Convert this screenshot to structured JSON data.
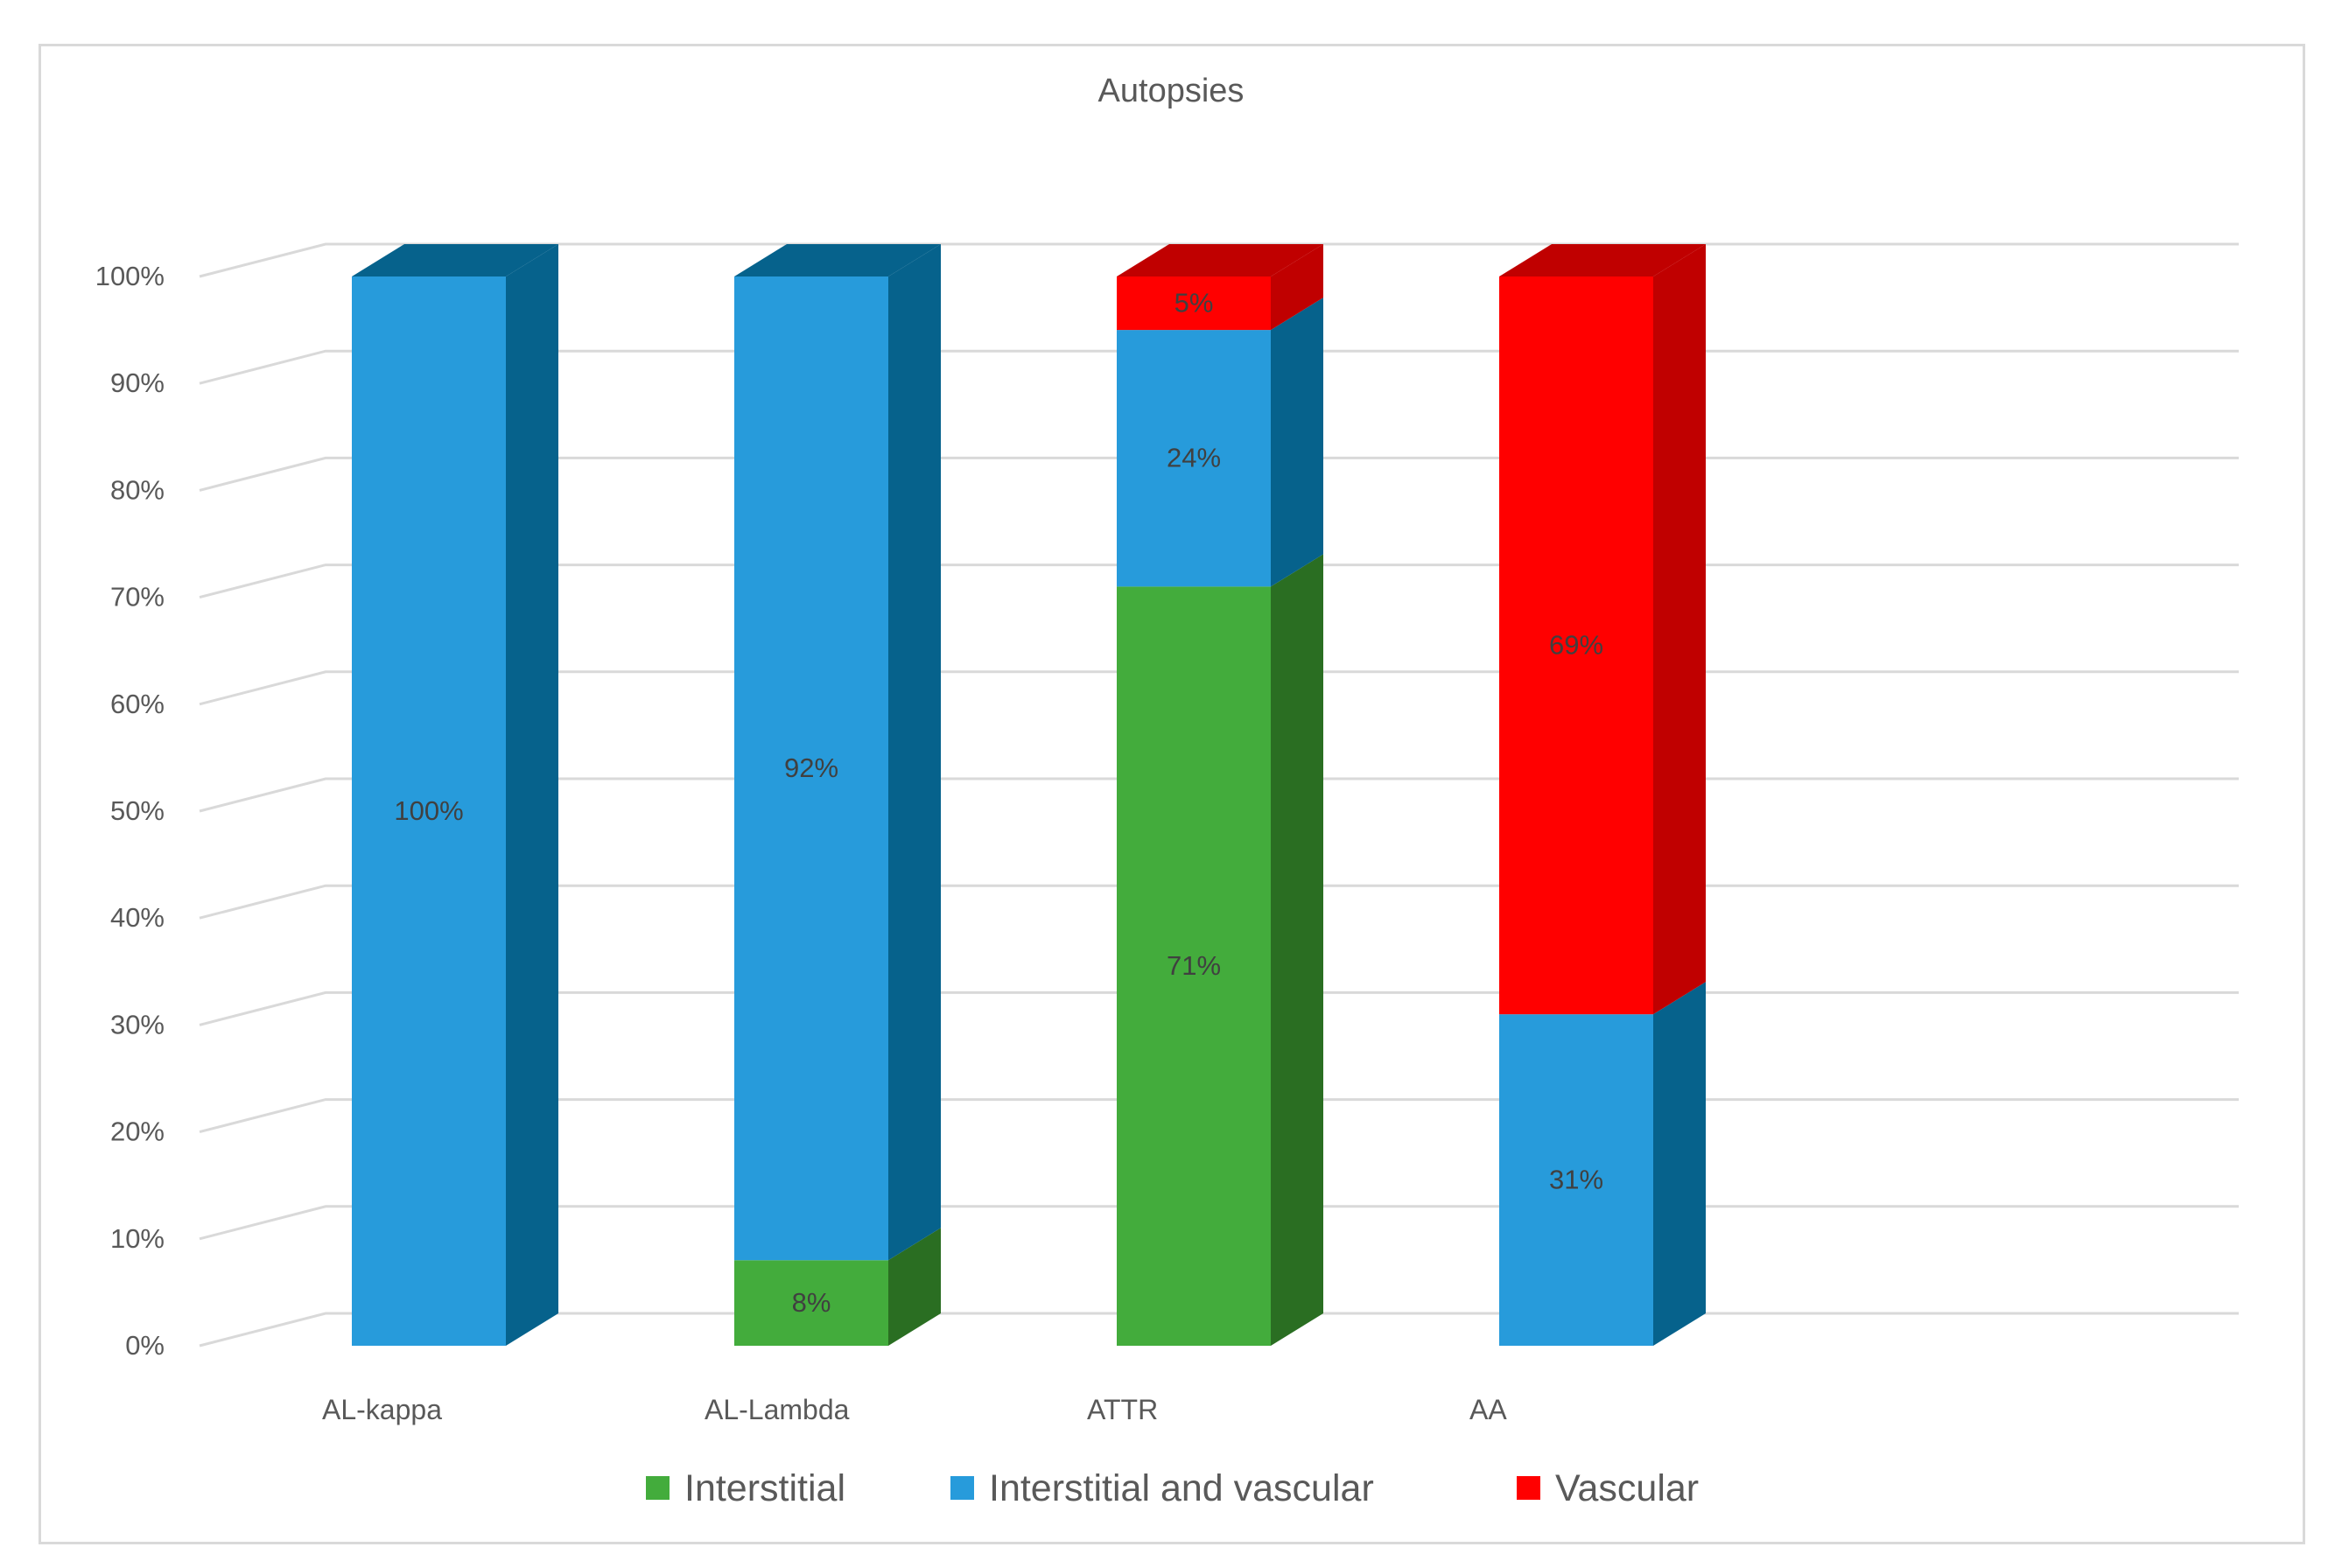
{
  "chart_data": {
    "type": "bar",
    "stacked": true,
    "percent_stacked": true,
    "three_d": true,
    "title": "Autopsies",
    "categories": [
      "AL-kappa",
      "AL-Lambda",
      "ATTR",
      "AA"
    ],
    "series": [
      {
        "name": "Interstitial",
        "color": "#43ac3c",
        "side_color": "#2a6e22",
        "values": [
          0,
          8,
          71,
          0
        ]
      },
      {
        "name": "Interstitial and vascular",
        "color": "#279bdb",
        "side_color": "#06628c",
        "values": [
          100,
          92,
          24,
          31
        ]
      },
      {
        "name": "Vascular",
        "color": "#ff0000",
        "side_color": "#c00000",
        "values": [
          0,
          0,
          5,
          69
        ]
      }
    ],
    "data_labels": [
      {
        "category": "AL-kappa",
        "series": "Interstitial and vascular",
        "text": "100%"
      },
      {
        "category": "AL-Lambda",
        "series": "Interstitial",
        "text": "8%"
      },
      {
        "category": "AL-Lambda",
        "series": "Interstitial and vascular",
        "text": "92%"
      },
      {
        "category": "ATTR",
        "series": "Interstitial",
        "text": "71%"
      },
      {
        "category": "ATTR",
        "series": "Interstitial and vascular",
        "text": "24%"
      },
      {
        "category": "ATTR",
        "series": "Vascular",
        "text": "5%"
      },
      {
        "category": "AA",
        "series": "Interstitial and vascular",
        "text": "31%"
      },
      {
        "category": "AA",
        "series": "Vascular",
        "text": "69%"
      }
    ],
    "y_ticks": [
      "0%",
      "10%",
      "20%",
      "30%",
      "40%",
      "50%",
      "60%",
      "70%",
      "80%",
      "90%",
      "100%"
    ],
    "ylim": [
      0,
      100
    ],
    "xlabel": "",
    "ylabel": "",
    "grid": true,
    "legend": "bottom"
  }
}
